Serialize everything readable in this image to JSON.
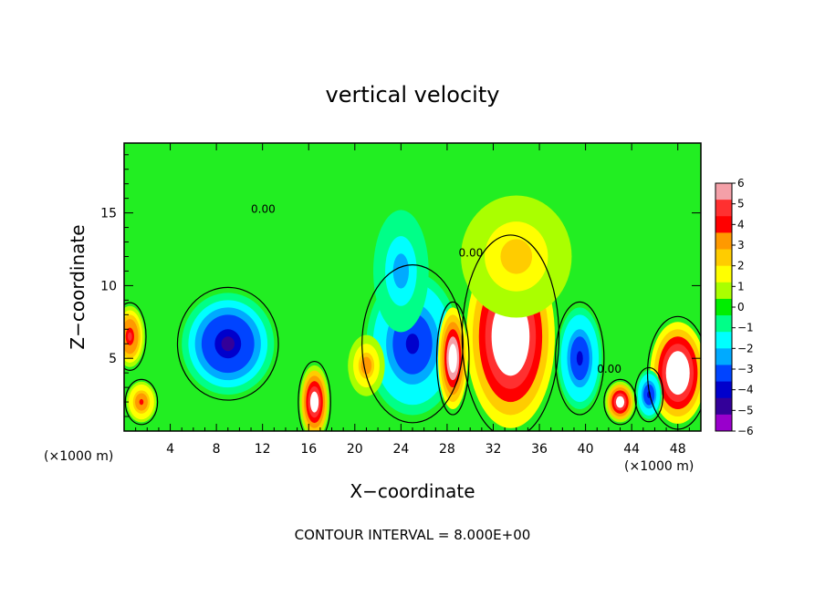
{
  "chart_data": {
    "type": "heatmap",
    "title": "vertical velocity",
    "xlabel": "X−coordinate",
    "ylabel": "Z−coordinate",
    "x_unit_left": "(×1000 m)",
    "x_unit_right": "(×1000 m)",
    "footer": "CONTOUR INTERVAL = 8.000E+00",
    "contour_label": "0.00",
    "xlim": [
      0,
      50
    ],
    "ylim": [
      0,
      19.8
    ],
    "x_ticks": [
      4,
      8,
      12,
      16,
      20,
      24,
      28,
      32,
      36,
      40,
      44,
      48
    ],
    "y_ticks": [
      5,
      10,
      15
    ],
    "colorbar": {
      "min": -6,
      "max": 6,
      "tick_labels": [
        "6",
        "5",
        "4",
        "3",
        "2",
        "1",
        "0",
        "−1",
        "−2",
        "−3",
        "−4",
        "−5",
        "−6"
      ],
      "colors": [
        "#f4a0a8",
        "#ff3030",
        "#ff0000",
        "#ff9900",
        "#ffcc00",
        "#ffff00",
        "#aaff00",
        "#00ee00",
        "#00ff88",
        "#00ffff",
        "#00aaff",
        "#0044ff",
        "#0000cc",
        "#330099",
        "#9900cc"
      ]
    },
    "features": [
      {
        "kind": "updraft",
        "x": 33.5,
        "z": 6.5,
        "sx": 2.4,
        "sz": 4.5,
        "value": 10
      },
      {
        "kind": "updraft",
        "x": 34,
        "z": 12,
        "sx": 3,
        "sz": 3,
        "value": 3
      },
      {
        "kind": "downdraft",
        "x": 9,
        "z": 6,
        "sx": 2.5,
        "sz": 2.5,
        "value": -6
      },
      {
        "kind": "downdraft",
        "x": 25,
        "z": 6,
        "sx": 2.5,
        "sz": 3.5,
        "value": -5
      },
      {
        "kind": "downdraft",
        "x": 24,
        "z": 11,
        "sx": 1.5,
        "sz": 3,
        "value": -3
      },
      {
        "kind": "updraft",
        "x": 28.5,
        "z": 5,
        "sx": 0.8,
        "sz": 2.5,
        "value": 9
      },
      {
        "kind": "updraft",
        "x": 16.5,
        "z": 2,
        "sx": 0.8,
        "sz": 1.8,
        "value": 8
      },
      {
        "kind": "updraft",
        "x": 21,
        "z": 4.5,
        "sx": 1,
        "sz": 1.5,
        "value": 4
      },
      {
        "kind": "updraft",
        "x": 1.5,
        "z": 2,
        "sx": 0.8,
        "sz": 1,
        "value": 5
      },
      {
        "kind": "updraft",
        "x": 0.5,
        "z": 6.5,
        "sx": 0.8,
        "sz": 1.5,
        "value": 6
      },
      {
        "kind": "downdraft",
        "x": 39.5,
        "z": 5,
        "sx": 1.2,
        "sz": 2.5,
        "value": -5
      },
      {
        "kind": "updraft",
        "x": 43,
        "z": 2,
        "sx": 0.8,
        "sz": 1,
        "value": 8
      },
      {
        "kind": "updraft",
        "x": 48,
        "z": 4,
        "sx": 1.5,
        "sz": 2.5,
        "value": 10
      },
      {
        "kind": "downdraft",
        "x": 45.5,
        "z": 2.5,
        "sx": 0.7,
        "sz": 1.2,
        "value": -5
      }
    ]
  }
}
